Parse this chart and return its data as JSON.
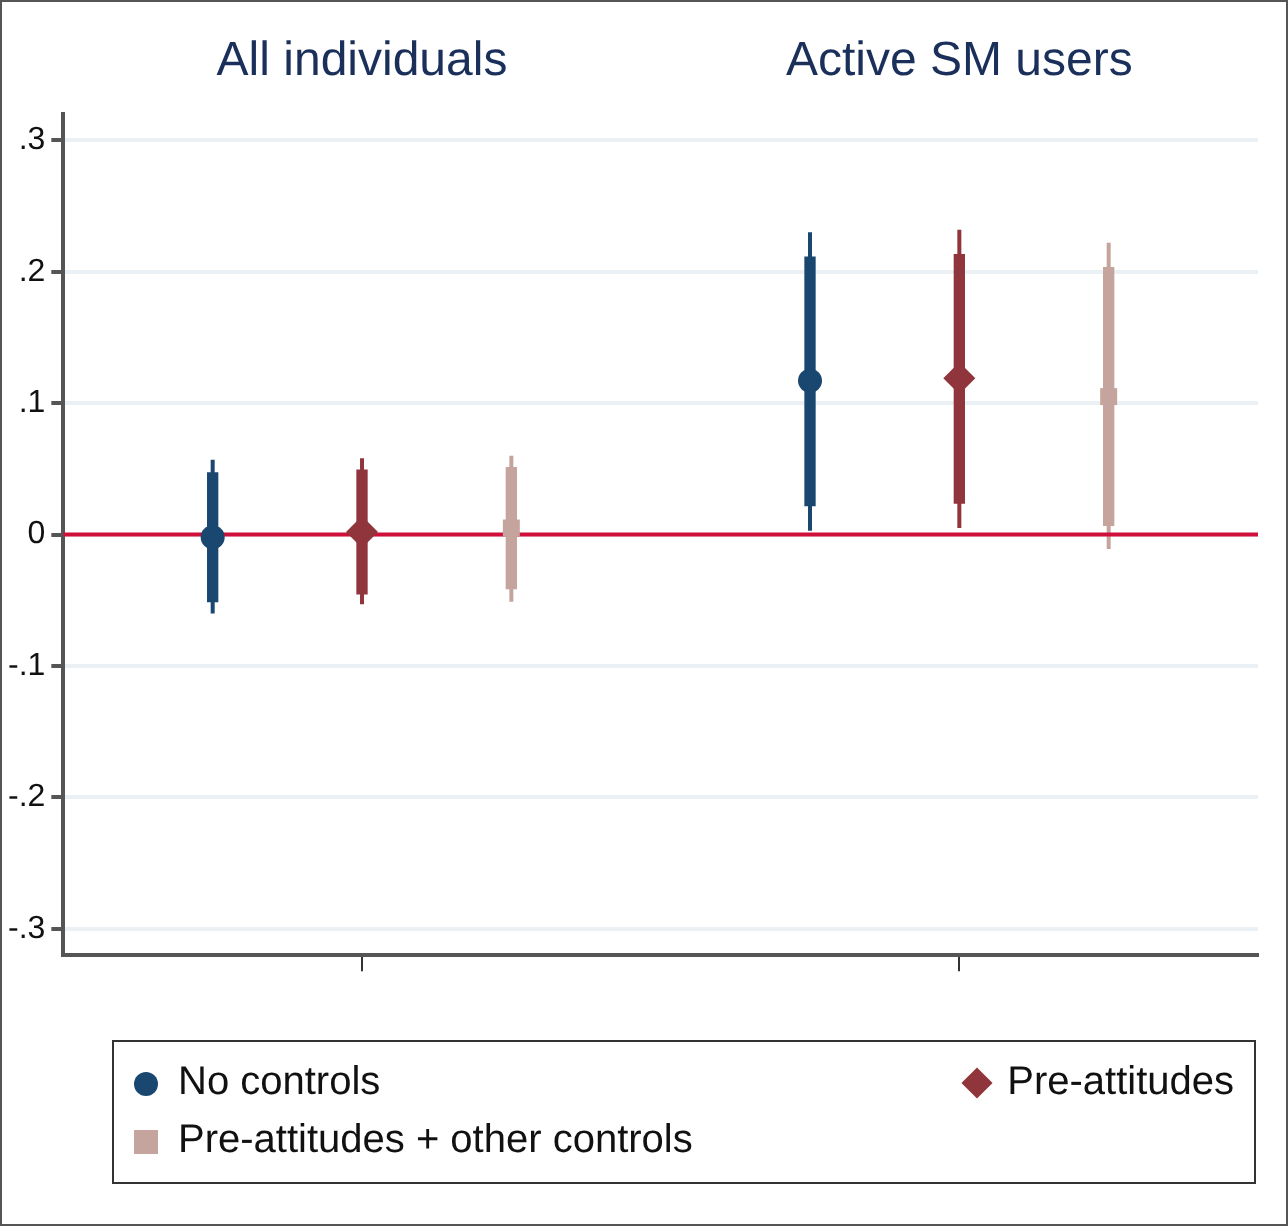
{
  "chart_data": {
    "type": "scatter",
    "categories": [
      "All individuals",
      "Active SM users"
    ],
    "ylim": [
      -0.32,
      0.32
    ],
    "yticks": [
      {
        "value": -0.3,
        "label": "-.3"
      },
      {
        "value": -0.2,
        "label": "-.2"
      },
      {
        "value": -0.1,
        "label": "-.1"
      },
      0,
      {
        "value": 0.1,
        "label": ".1"
      },
      {
        "value": 0.2,
        "label": ".2"
      },
      {
        "value": 0.3,
        "label": ".3"
      }
    ],
    "grid": "y",
    "legend": "bottom",
    "ref_lines": [
      {
        "axis": "y",
        "value": 0,
        "color": "#d0103a"
      }
    ],
    "series": [
      {
        "name": "No controls",
        "color": "#1a476f",
        "marker": "circle",
        "values": [
          -0.002,
          0.117
        ],
        "errors": [
          [
            -0.06,
            0.057
          ],
          [
            0.003,
            0.23
          ]
        ]
      },
      {
        "name": "Pre-attitudes",
        "color": "#90353b",
        "marker": "diamond",
        "values": [
          0.002,
          0.119
        ],
        "errors": [
          [
            -0.053,
            0.058
          ],
          [
            0.005,
            0.232
          ]
        ]
      },
      {
        "name": "Pre-attitudes + other controls",
        "color": "#c4a49c",
        "marker": "square",
        "values": [
          0.005,
          0.105
        ],
        "errors": [
          [
            -0.051,
            0.06
          ],
          [
            -0.011,
            0.222
          ]
        ]
      },
      {
        "type": "bar",
        "color": "#1a476f",
        "base": [
          -0.051,
          0.022
        ],
        "values": [
          0.098,
          0.189
        ]
      },
      {
        "type": "bar",
        "color": "#90353b",
        "base": [
          -0.045,
          0.024
        ],
        "values": [
          0.094,
          0.189
        ]
      },
      {
        "type": "bar",
        "color": "#c4a49c",
        "base": [
          -0.041,
          0.007
        ],
        "values": [
          0.092,
          0.196
        ]
      }
    ]
  }
}
